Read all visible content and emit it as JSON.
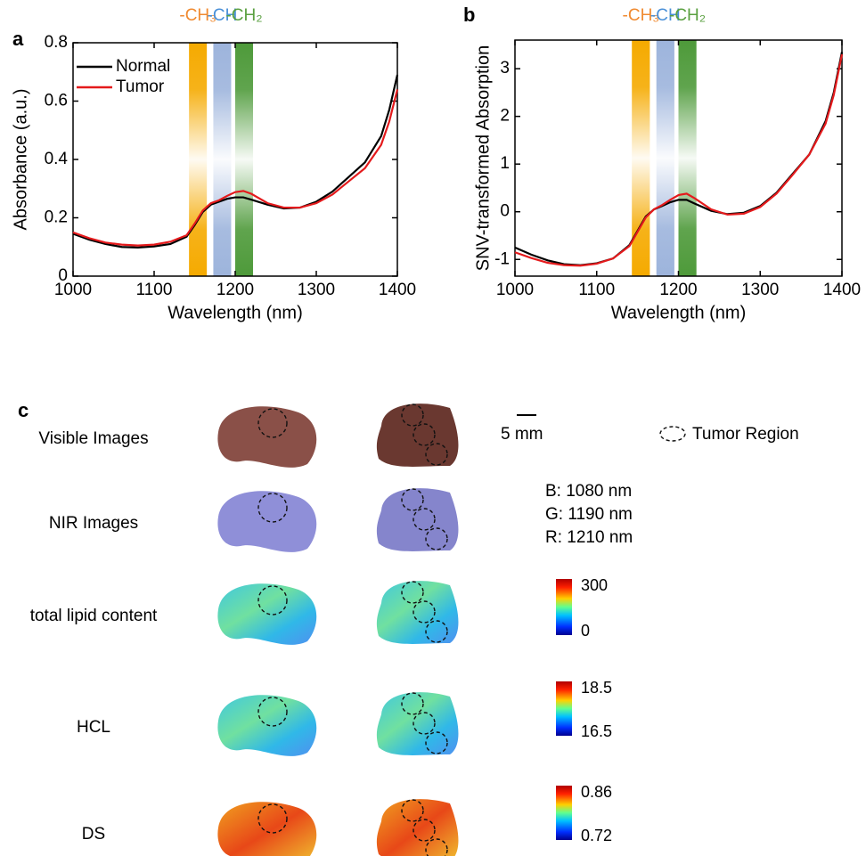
{
  "chart_data": [
    {
      "type": "line",
      "panel_label": "a",
      "xlabel": "Wavelength (nm)",
      "ylabel": "Absorbance (a.u.)",
      "xlim": [
        1000,
        1400
      ],
      "xticks": [
        1000,
        1100,
        1200,
        1300,
        1400
      ],
      "ylim": [
        0,
        0.8
      ],
      "yticks": [
        0,
        0.2,
        0.4,
        0.6,
        0.8
      ],
      "legend": "upper left",
      "bands": [
        {
          "label": "-CH₃",
          "range": [
            1143,
            1165
          ],
          "color": "#f5aa00",
          "label_color": "#f08a30"
        },
        {
          "label": "-CH",
          "range": [
            1173,
            1195
          ],
          "color": "#9db4dc",
          "label_color": "#4a90d8"
        },
        {
          "label": "-CH₂",
          "range": [
            1200,
            1222
          ],
          "color": "#4e9a3a",
          "label_color": "#5aa040"
        }
      ],
      "x": [
        1000,
        1020,
        1040,
        1060,
        1080,
        1100,
        1120,
        1140,
        1150,
        1160,
        1170,
        1180,
        1190,
        1200,
        1210,
        1220,
        1240,
        1260,
        1280,
        1300,
        1320,
        1340,
        1360,
        1380,
        1390,
        1400
      ],
      "series": [
        {
          "name": "Normal",
          "color": "#000000",
          "values": [
            0.145,
            0.125,
            0.11,
            0.1,
            0.098,
            0.102,
            0.11,
            0.135,
            0.175,
            0.22,
            0.245,
            0.255,
            0.265,
            0.27,
            0.27,
            0.262,
            0.245,
            0.232,
            0.235,
            0.255,
            0.29,
            0.34,
            0.39,
            0.48,
            0.57,
            0.69
          ]
        },
        {
          "name": "Tumor",
          "color": "#e41a1c",
          "values": [
            0.15,
            0.13,
            0.115,
            0.108,
            0.105,
            0.108,
            0.118,
            0.14,
            0.18,
            0.225,
            0.25,
            0.26,
            0.275,
            0.288,
            0.292,
            0.282,
            0.25,
            0.235,
            0.235,
            0.25,
            0.28,
            0.325,
            0.37,
            0.45,
            0.53,
            0.64
          ]
        }
      ]
    },
    {
      "type": "line",
      "panel_label": "b",
      "xlabel": "Wavelength (nm)",
      "ylabel": "SNV-transformed Absorption",
      "xlim": [
        1000,
        1400
      ],
      "xticks": [
        1000,
        1100,
        1200,
        1300,
        1400
      ],
      "ylim": [
        -1.35,
        3.6
      ],
      "yticks": [
        -1,
        0,
        1,
        2,
        3
      ],
      "bands": [
        {
          "label": "-CH₃",
          "range": [
            1143,
            1165
          ],
          "color": "#f5aa00",
          "label_color": "#f08a30"
        },
        {
          "label": "-CH",
          "range": [
            1173,
            1195
          ],
          "color": "#9db4dc",
          "label_color": "#4a90d8"
        },
        {
          "label": "-CH₂",
          "range": [
            1200,
            1222
          ],
          "color": "#4e9a3a",
          "label_color": "#5aa040"
        }
      ],
      "x": [
        1000,
        1020,
        1040,
        1060,
        1080,
        1100,
        1120,
        1140,
        1150,
        1160,
        1170,
        1180,
        1190,
        1200,
        1210,
        1220,
        1240,
        1260,
        1280,
        1300,
        1320,
        1340,
        1360,
        1380,
        1390,
        1400
      ],
      "series": [
        {
          "name": "Normal",
          "color": "#000000",
          "values": [
            -0.75,
            -0.9,
            -1.02,
            -1.1,
            -1.12,
            -1.08,
            -0.98,
            -0.7,
            -0.4,
            -0.1,
            0.05,
            0.12,
            0.2,
            0.25,
            0.25,
            0.17,
            0.02,
            -0.05,
            -0.02,
            0.12,
            0.4,
            0.8,
            1.2,
            1.9,
            2.5,
            3.35
          ]
        },
        {
          "name": "Tumor",
          "color": "#e41a1c",
          "values": [
            -0.85,
            -0.97,
            -1.07,
            -1.12,
            -1.13,
            -1.09,
            -0.98,
            -0.72,
            -0.42,
            -0.12,
            0.05,
            0.14,
            0.25,
            0.35,
            0.38,
            0.28,
            0.05,
            -0.06,
            -0.04,
            0.1,
            0.38,
            0.78,
            1.2,
            1.85,
            2.45,
            3.3
          ]
        }
      ]
    }
  ],
  "panel_c": {
    "label": "c",
    "rows": [
      "Visible Images",
      "NIR Images",
      "total lipid content",
      "HCL",
      "DS"
    ],
    "scale_bar": "5 mm",
    "legend": "Tumor Region",
    "channels": [
      "B: 1080 nm",
      "G: 1190 nm",
      "R: 1210 nm"
    ],
    "colorbars": [
      {
        "max": 300,
        "min": 0
      },
      {
        "max": 18.5,
        "min": 16.5
      },
      {
        "max": 0.86,
        "min": 0.72
      }
    ]
  }
}
